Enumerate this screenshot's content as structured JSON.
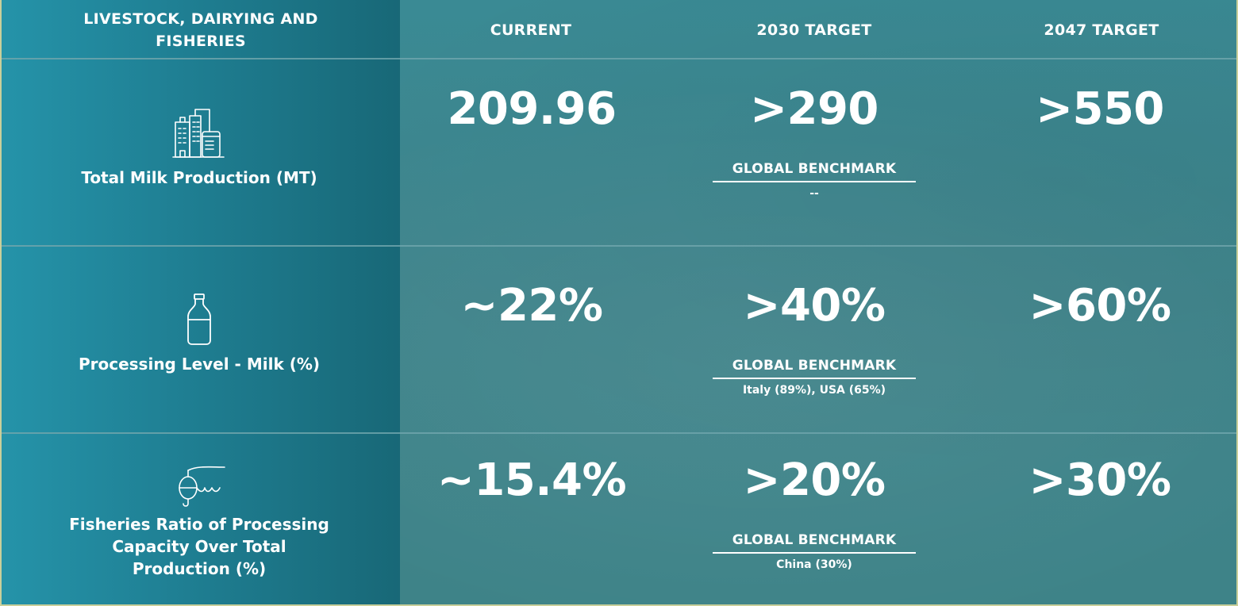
{
  "header": {
    "category": "LIVESTOCK, DAIRYING AND FISHERIES",
    "current": "CURRENT",
    "target_2030": "2030 TARGET",
    "target_2047": "2047 TARGET"
  },
  "rows": [
    {
      "icon": "dairy-factory-icon",
      "label": "Total Milk Production (MT)",
      "current": "209.96",
      "target_2030": ">290",
      "target_2047": ">550",
      "benchmark_title": "GLOBAL BENCHMARK",
      "benchmark_value": "--"
    },
    {
      "icon": "milk-bottle-icon",
      "label": "Processing Level - Milk (%)",
      "current": "~22%",
      "target_2030": ">40%",
      "target_2047": ">60%",
      "benchmark_title": "GLOBAL BENCHMARK",
      "benchmark_value": "Italy (89%), USA (65%)"
    },
    {
      "icon": "fishing-hook-icon",
      "label": "Fisheries Ratio of Processing Capacity Over Total Production (%)",
      "current": "~15.4%",
      "target_2030": ">20%",
      "target_2047": ">30%",
      "benchmark_title": "GLOBAL BENCHMARK",
      "benchmark_value": "China (30%)"
    }
  ],
  "colors": {
    "left_column_start": "#2593a9",
    "left_column_end": "#186877",
    "background": "#3f848b",
    "text": "#ffffff"
  }
}
